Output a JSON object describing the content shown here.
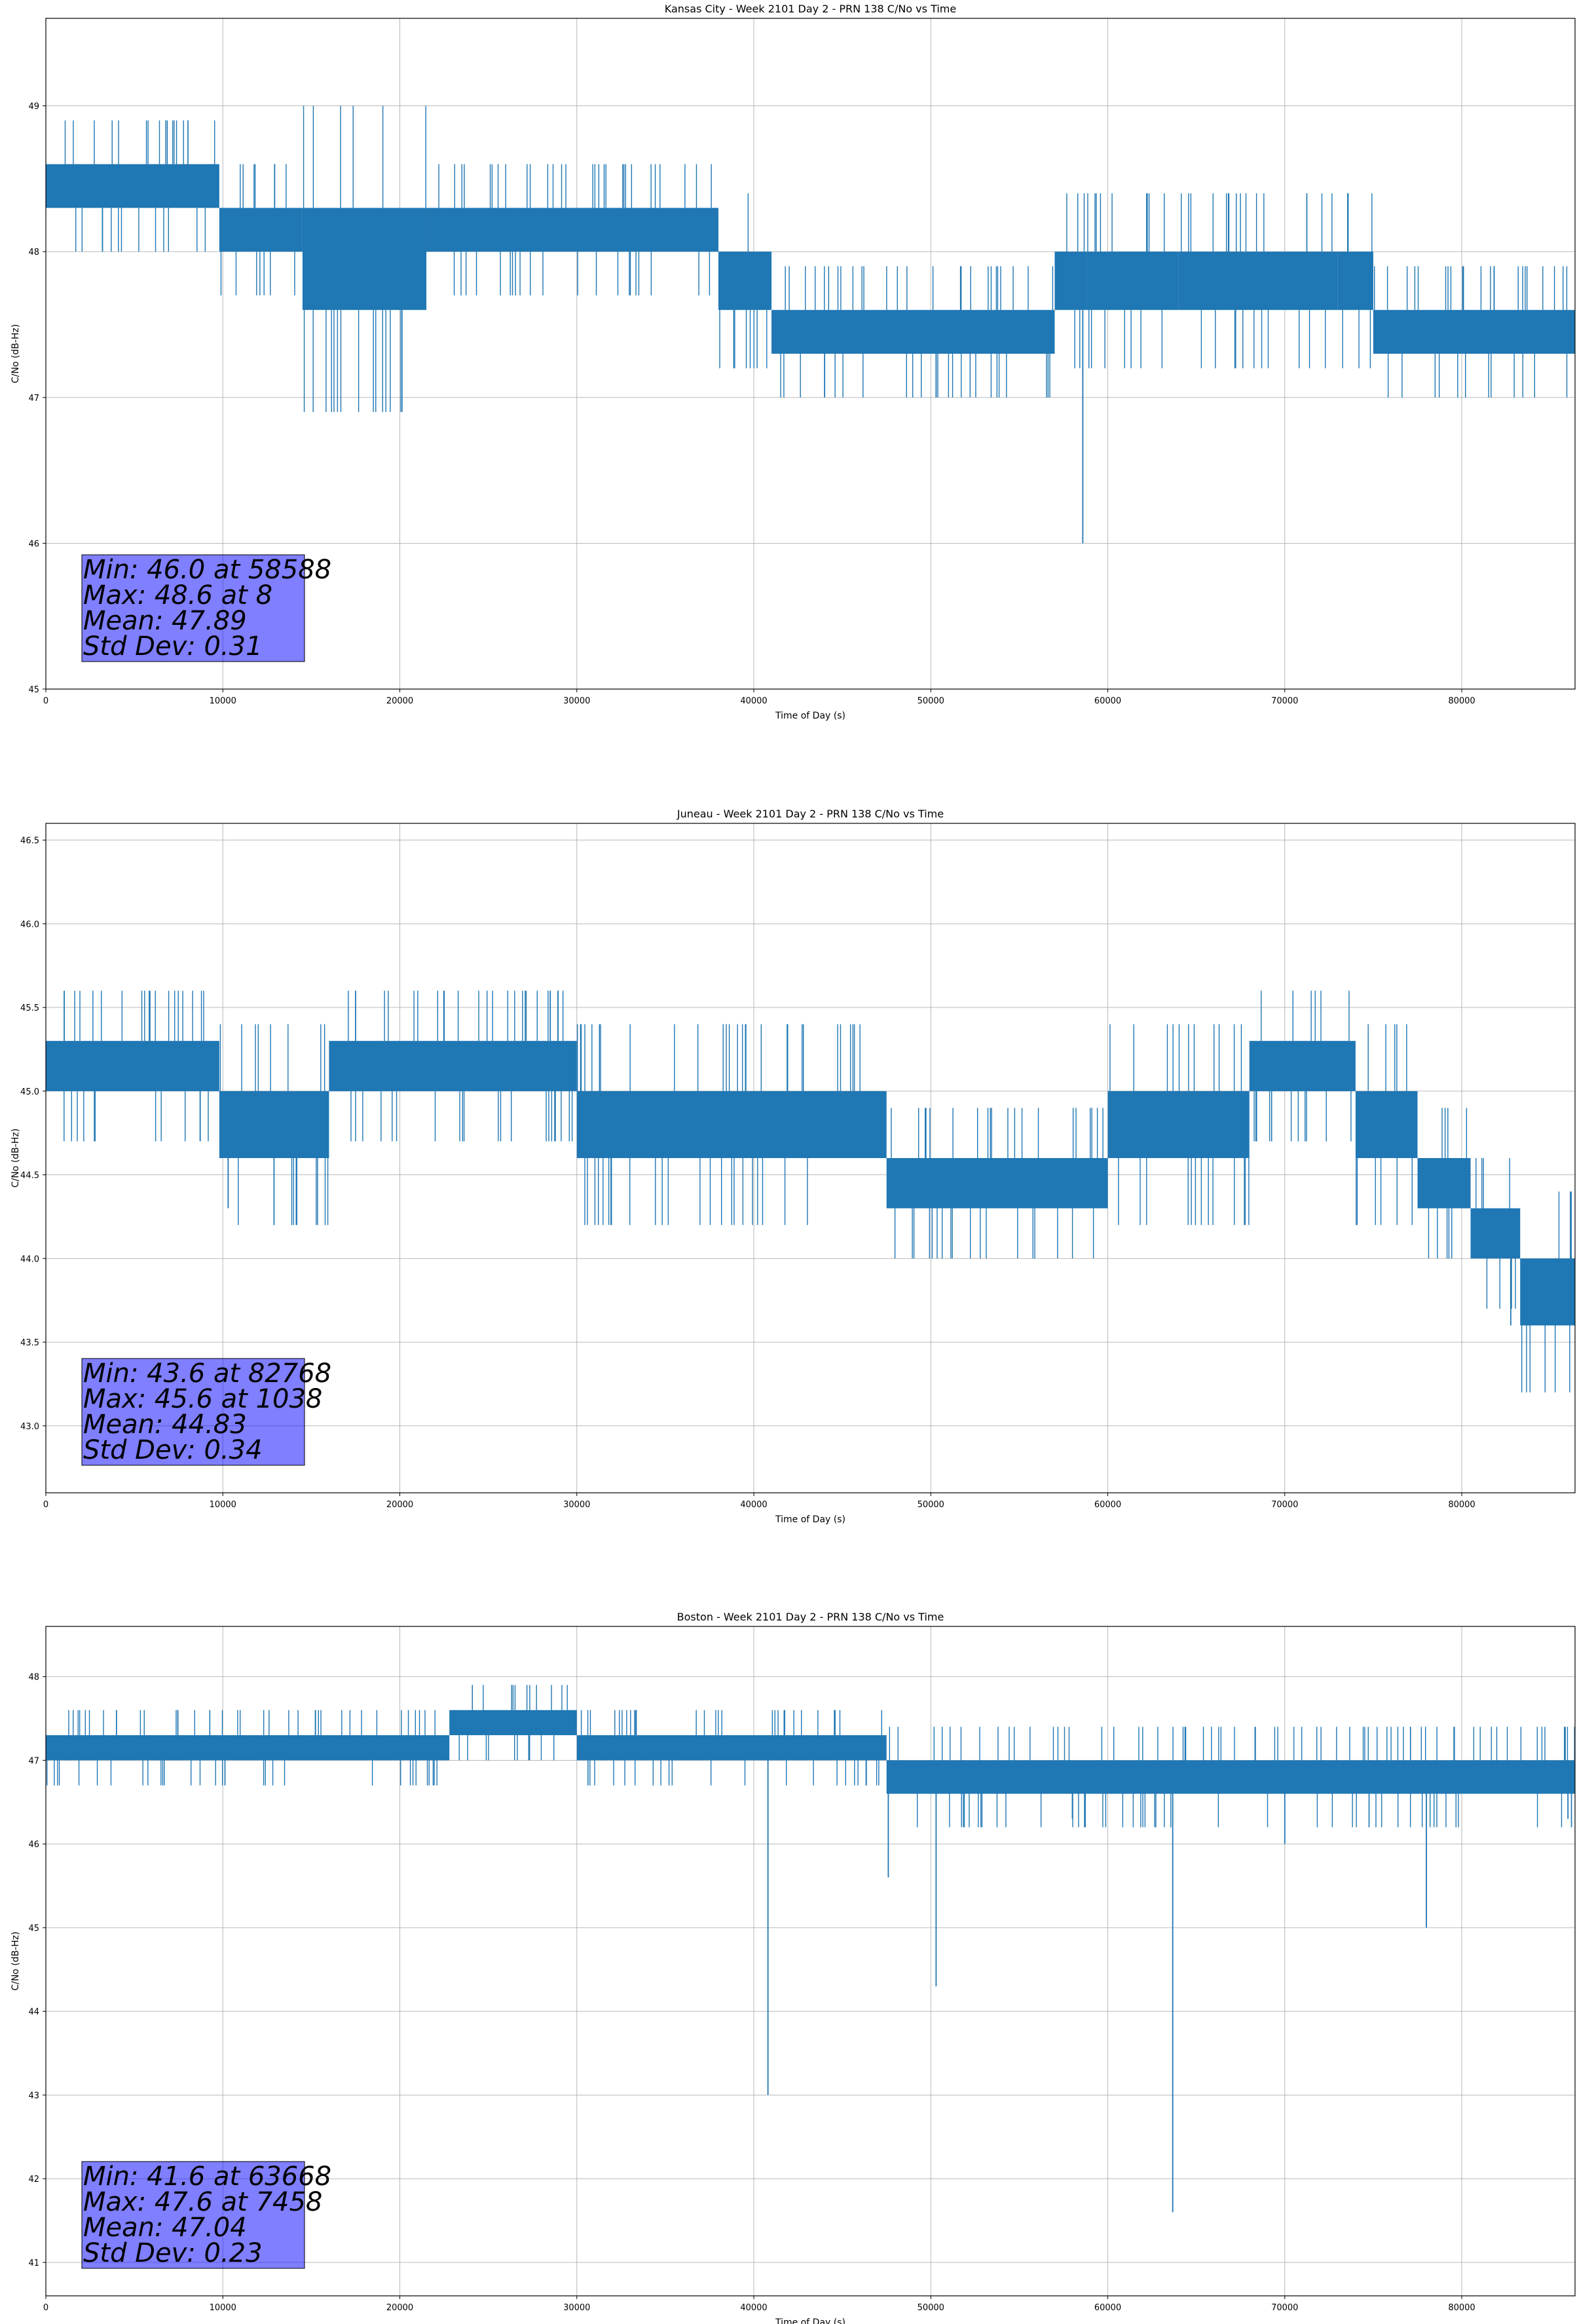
{
  "chart_data": [
    {
      "type": "line",
      "title": "Kansas City - Week 2101 Day 2 - PRN 138 C/No vs Time",
      "xlabel": "Time of Day (s)",
      "ylabel": "C/No (dB-Hz)",
      "xlim": [
        0,
        86400
      ],
      "ylim": [
        45,
        49.6
      ],
      "xticks": [
        0,
        10000,
        20000,
        30000,
        40000,
        50000,
        60000,
        70000,
        80000
      ],
      "yticks": [
        45,
        46,
        47,
        48,
        49
      ],
      "ytick_labels": [
        "45",
        "46",
        "47",
        "48",
        "49"
      ],
      "grid": true,
      "color": "#1f77b4",
      "series": [
        {
          "name": "PRN 138 C/No",
          "segments": [
            {
              "x0": 0,
              "x1": 9800,
              "lo": 48.3,
              "hi": 48.6
            },
            {
              "x0": 9800,
              "x1": 14500,
              "lo": 48.0,
              "hi": 48.3
            },
            {
              "x0": 14500,
              "x1": 21500,
              "lo": 47.6,
              "hi": 48.3
            },
            {
              "x0": 21500,
              "x1": 38000,
              "lo": 48.0,
              "hi": 48.3
            },
            {
              "x0": 38000,
              "x1": 41000,
              "lo": 47.6,
              "hi": 48.0
            },
            {
              "x0": 41000,
              "x1": 57000,
              "lo": 47.3,
              "hi": 47.6
            },
            {
              "x0": 57000,
              "x1": 58800,
              "lo": 47.6,
              "hi": 48.0
            },
            {
              "x0": 58800,
              "x1": 64000,
              "lo": 47.6,
              "hi": 48.0
            },
            {
              "x0": 64000,
              "x1": 73000,
              "lo": 47.6,
              "hi": 48.0
            },
            {
              "x0": 73000,
              "x1": 75000,
              "lo": 47.6,
              "hi": 48.0
            },
            {
              "x0": 75000,
              "x1": 86400,
              "lo": 47.3,
              "hi": 47.6
            }
          ],
          "spikes": [
            {
              "x": 3200,
              "y": 48.0
            },
            {
              "x": 44000,
              "y": 47.0
            },
            {
              "x": 50300,
              "y": 47.0
            },
            {
              "x": 58588,
              "y": 46.0
            }
          ]
        }
      ],
      "stats": {
        "min": "Min: 46.0 at 58588",
        "max": "Max: 48.6 at 8",
        "mean": "Mean: 47.89",
        "std": "Std Dev: 0.31"
      }
    },
    {
      "type": "line",
      "title": "Juneau - Week 2101 Day 2 - PRN 138 C/No vs Time",
      "xlabel": "Time of Day (s)",
      "ylabel": "C/No (dB-Hz)",
      "xlim": [
        0,
        86400
      ],
      "ylim": [
        42.6,
        46.6
      ],
      "xticks": [
        0,
        10000,
        20000,
        30000,
        40000,
        50000,
        60000,
        70000,
        80000
      ],
      "yticks": [
        43.0,
        43.5,
        44.0,
        44.5,
        45.0,
        45.5,
        46.0,
        46.5
      ],
      "ytick_labels": [
        "43.0",
        "43.5",
        "44.0",
        "44.5",
        "45.0",
        "45.5",
        "46.0",
        "46.5"
      ],
      "grid": true,
      "color": "#1f77b4",
      "series": [
        {
          "name": "PRN 138 C/No",
          "segments": [
            {
              "x0": 0,
              "x1": 9800,
              "lo": 45.0,
              "hi": 45.3
            },
            {
              "x0": 9800,
              "x1": 16000,
              "lo": 44.6,
              "hi": 45.0
            },
            {
              "x0": 16000,
              "x1": 30000,
              "lo": 45.0,
              "hi": 45.3
            },
            {
              "x0": 30000,
              "x1": 47500,
              "lo": 44.6,
              "hi": 45.0
            },
            {
              "x0": 47500,
              "x1": 60000,
              "lo": 44.3,
              "hi": 44.6
            },
            {
              "x0": 60000,
              "x1": 68000,
              "lo": 44.6,
              "hi": 45.0
            },
            {
              "x0": 68000,
              "x1": 74000,
              "lo": 45.0,
              "hi": 45.3
            },
            {
              "x0": 74000,
              "x1": 77500,
              "lo": 44.6,
              "hi": 45.0
            },
            {
              "x0": 77500,
              "x1": 80500,
              "lo": 44.3,
              "hi": 44.6
            },
            {
              "x0": 80500,
              "x1": 83300,
              "lo": 44.0,
              "hi": 44.3
            },
            {
              "x0": 83300,
              "x1": 86400,
              "lo": 43.6,
              "hi": 44.0
            }
          ],
          "spikes": [
            {
              "x": 1038,
              "y": 45.6
            },
            {
              "x": 10300,
              "y": 44.3
            },
            {
              "x": 17500,
              "y": 45.6
            },
            {
              "x": 22500,
              "y": 45.6
            },
            {
              "x": 28500,
              "y": 45.6
            },
            {
              "x": 82768,
              "y": 43.6
            }
          ]
        }
      ],
      "stats": {
        "min": "Min: 43.6 at 82768",
        "max": "Max: 45.6 at 1038",
        "mean": "Mean: 44.83",
        "std": "Std Dev: 0.34"
      }
    },
    {
      "type": "line",
      "title": "Boston - Week 2101 Day 2 - PRN 138 C/No vs Time",
      "xlabel": "Time of Day (s)",
      "ylabel": "C/No (dB-Hz)",
      "xlim": [
        0,
        86400
      ],
      "ylim": [
        40.6,
        48.6
      ],
      "xticks": [
        0,
        10000,
        20000,
        30000,
        40000,
        50000,
        60000,
        70000,
        80000
      ],
      "yticks": [
        41,
        42,
        43,
        44,
        45,
        46,
        47,
        48
      ],
      "ytick_labels": [
        "41",
        "42",
        "43",
        "44",
        "45",
        "46",
        "47",
        "48"
      ],
      "grid": true,
      "color": "#1f77b4",
      "series": [
        {
          "name": "PRN 138 C/No",
          "segments": [
            {
              "x0": 0,
              "x1": 22800,
              "lo": 47.0,
              "hi": 47.3
            },
            {
              "x0": 22800,
              "x1": 30000,
              "lo": 47.3,
              "hi": 47.6
            },
            {
              "x0": 30000,
              "x1": 47500,
              "lo": 47.0,
              "hi": 47.3
            },
            {
              "x0": 47500,
              "x1": 86400,
              "lo": 46.6,
              "hi": 47.0
            }
          ],
          "spikes": [
            {
              "x": 7458,
              "y": 47.6
            },
            {
              "x": 40800,
              "y": 43.0
            },
            {
              "x": 47600,
              "y": 45.6
            },
            {
              "x": 50300,
              "y": 44.3
            },
            {
              "x": 58000,
              "y": 46.3
            },
            {
              "x": 63668,
              "y": 41.6
            },
            {
              "x": 70000,
              "y": 46.0
            },
            {
              "x": 78000,
              "y": 45.0
            },
            {
              "x": 86000,
              "y": 46.3
            }
          ]
        }
      ],
      "stats": {
        "min": "Min: 41.6 at 63668",
        "max": "Max: 47.6 at 7458",
        "mean": "Mean: 47.04",
        "std": "Std Dev: 0.23"
      }
    }
  ]
}
